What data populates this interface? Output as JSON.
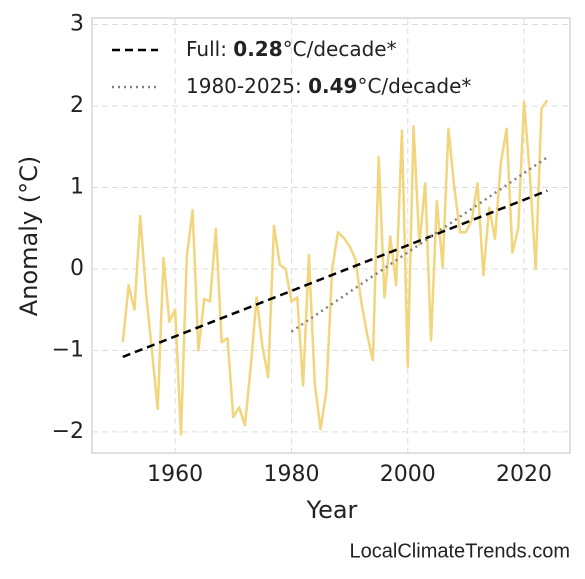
{
  "chart_data": {
    "type": "line",
    "xlabel": "Year",
    "ylabel": "Anomaly (°C)",
    "watermark": "LocalClimateTrends.com",
    "xlim": [
      1945.7,
      2027.9
    ],
    "xticks": [
      1960,
      1980,
      2000,
      2020
    ],
    "ylim": [
      -2.26,
      3.08
    ],
    "yticks": [
      {
        "value": -2,
        "label": "−2"
      },
      {
        "value": -1,
        "label": "−1"
      },
      0,
      1,
      2,
      3
    ],
    "grid": true,
    "legend": "upper left",
    "x": [
      1951,
      1952,
      1953,
      1954,
      1955,
      1956,
      1957,
      1958,
      1959,
      1960,
      1961,
      1962,
      1963,
      1964,
      1965,
      1966,
      1967,
      1968,
      1969,
      1970,
      1971,
      1972,
      1973,
      1974,
      1975,
      1976,
      1977,
      1978,
      1979,
      1980,
      1981,
      1982,
      1983,
      1984,
      1985,
      1986,
      1987,
      1988,
      1989,
      1990,
      1991,
      1992,
      1993,
      1994,
      1995,
      1996,
      1997,
      1998,
      1999,
      2000,
      2001,
      2002,
      2003,
      2004,
      2005,
      2006,
      2007,
      2008,
      2009,
      2010,
      2011,
      2012,
      2013,
      2014,
      2015,
      2016,
      2017,
      2018,
      2019,
      2020,
      2021,
      2022,
      2023,
      2024
    ],
    "values": [
      -0.9,
      -0.2,
      -0.5,
      0.65,
      -0.3,
      -1.0,
      -1.72,
      0.13,
      -0.65,
      -0.5,
      -2.03,
      0.15,
      0.72,
      -1.0,
      -0.37,
      -0.4,
      0.49,
      -0.9,
      -0.85,
      -1.82,
      -1.7,
      -1.92,
      -1.2,
      -0.35,
      -0.95,
      -1.33,
      0.53,
      0.05,
      0.0,
      -0.4,
      -0.35,
      -1.43,
      0.17,
      -1.4,
      -1.97,
      -1.5,
      0.0,
      0.45,
      0.38,
      0.28,
      0.12,
      -0.4,
      -0.8,
      -1.12,
      1.37,
      -0.35,
      0.4,
      -0.2,
      1.7,
      -1.2,
      1.75,
      0.3,
      1.05,
      -0.88,
      0.83,
      0.02,
      1.72,
      1.0,
      0.45,
      0.45,
      0.6,
      1.05,
      -0.08,
      0.75,
      0.37,
      1.3,
      1.72,
      0.2,
      0.5,
      2.05,
      1.15,
      0.0,
      1.97,
      2.07
    ],
    "color": "#f2d57c",
    "trends": [
      {
        "label_start": "Full: ",
        "label_bold": "0.28",
        "label_end": "°C/decade*",
        "color": "#000000",
        "dash": "dashed",
        "x": [
          1951,
          2024
        ],
        "values": [
          -1.08,
          0.96
        ]
      },
      {
        "label_start": "1980-2025: ",
        "label_bold": "0.49",
        "label_end": "°C/decade*",
        "color": "#808080",
        "dash": "dotted",
        "x": [
          1980,
          2024
        ],
        "values": [
          -0.77,
          1.37
        ]
      }
    ]
  }
}
